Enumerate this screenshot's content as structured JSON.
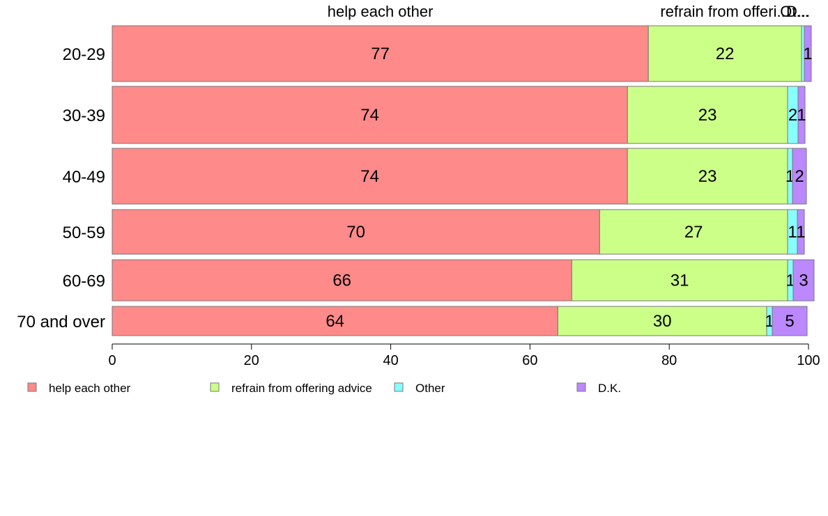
{
  "colors": {
    "help each other": "#ff8a8a",
    "refrain from offering advice": "#ccff88",
    "Other": "#88ffff",
    "D.K.": "#bb88ff",
    "bar_border": "#777777",
    "axis": "#000000"
  },
  "chart_data": {
    "type": "bar",
    "orientation": "horizontal",
    "stacked": true,
    "categories": [
      "20-29",
      "30-39",
      "40-49",
      "50-59",
      "60-69",
      "70 and over"
    ],
    "series": [
      {
        "name": "help each other",
        "values": [
          77,
          74,
          74,
          70,
          66,
          64
        ],
        "labels": [
          "77",
          "74",
          "74",
          "70",
          "66",
          "64"
        ]
      },
      {
        "name": "refrain from offering advice",
        "values": [
          22,
          23,
          23,
          27,
          31,
          30
        ],
        "labels": [
          "22",
          "23",
          "23",
          "27",
          "31",
          "30"
        ]
      },
      {
        "name": "Other",
        "values": [
          0.4,
          1.5,
          0.7,
          1.4,
          0.8,
          0.8
        ],
        "labels": [
          "",
          "2",
          "1",
          "1",
          "1",
          "1"
        ]
      },
      {
        "name": "D.K.",
        "values": [
          1,
          1,
          2,
          1,
          3,
          5
        ],
        "labels": [
          "1",
          "1",
          "2",
          "1",
          "3",
          "5"
        ]
      }
    ],
    "top_labels": [
      "help each other",
      "refrain from offeri...",
      "Ot...",
      "D..."
    ],
    "xlim": [
      0,
      100
    ],
    "xticks": [
      "0",
      "20",
      "40",
      "60",
      "80",
      "100"
    ],
    "grid": false,
    "legend_position": "bottom",
    "legend": [
      "help each other",
      "refrain from offering advice",
      "Other",
      "D.K."
    ]
  }
}
